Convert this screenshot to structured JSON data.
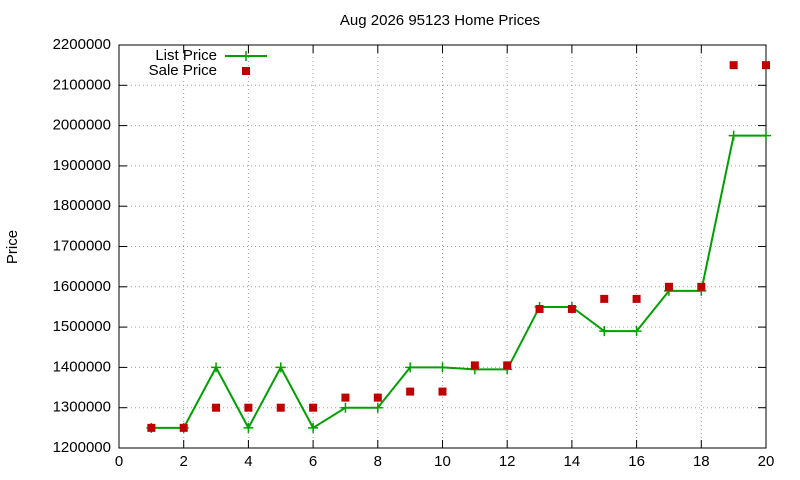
{
  "chart_data": {
    "type": "line",
    "title": "Aug 2026 95123 Home Prices",
    "y_label": "Price",
    "x": [
      1,
      2,
      3,
      4,
      5,
      6,
      7,
      8,
      9,
      10,
      11,
      12,
      13,
      14,
      15,
      16,
      17,
      18,
      19,
      20
    ],
    "series": [
      {
        "name": "List Price",
        "color": "#00a000",
        "style": "linespoints",
        "values": [
          1250000,
          1250000,
          1400000,
          1250000,
          1400000,
          1250000,
          1300000,
          1300000,
          1400000,
          1400000,
          1395000,
          1395000,
          1550000,
          1550000,
          1490000,
          1490000,
          1590000,
          1590000,
          1975000,
          1975000
        ]
      },
      {
        "name": "Sale Price",
        "color": "#c00000",
        "style": "points",
        "values": [
          1250000,
          1250000,
          1300000,
          1300000,
          1300000,
          1300000,
          1325000,
          1325000,
          1340000,
          1340000,
          1405000,
          1405000,
          1545000,
          1545000,
          1570000,
          1570000,
          1600000,
          1600000,
          2150000,
          2150000
        ]
      }
    ],
    "xlim": [
      0,
      20
    ],
    "xticks": [
      0,
      2,
      4,
      6,
      8,
      10,
      12,
      14,
      16,
      18,
      20
    ],
    "ylim": [
      1200000,
      2200000
    ],
    "yticks": [
      1200000,
      1300000,
      1400000,
      1500000,
      1600000,
      1700000,
      1800000,
      1900000,
      2000000,
      2100000,
      2200000
    ],
    "grid": true,
    "legend": "top-left"
  }
}
